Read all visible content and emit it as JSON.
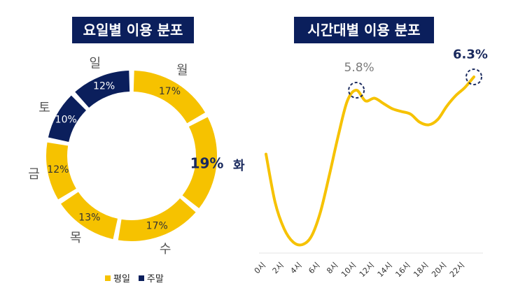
{
  "colors": {
    "weekday": "#f6c200",
    "weekend": "#0b1f5c",
    "highlight_label": "#1a2a5e",
    "peak_label_gray": "#7d7d7d"
  },
  "chart_data": [
    {
      "type": "pie",
      "title": "요일별 이용 분포",
      "slices": [
        {
          "label": "월",
          "value": 17,
          "value_label": "17%",
          "group": "평일"
        },
        {
          "label": "화",
          "value": 19,
          "value_label": "19%",
          "group": "평일"
        },
        {
          "label": "수",
          "value": 17,
          "value_label": "17%",
          "group": "평일"
        },
        {
          "label": "목",
          "value": 13,
          "value_label": "13%",
          "group": "평일"
        },
        {
          "label": "금",
          "value": 12,
          "value_label": "12%",
          "group": "평일"
        },
        {
          "label": "토",
          "value": 10,
          "value_label": "10%",
          "group": "주말"
        },
        {
          "label": "일",
          "value": 12,
          "value_label": "12%",
          "group": "주말"
        }
      ],
      "legend": [
        "평일",
        "주말"
      ]
    },
    {
      "type": "line",
      "title": "시간대별 이용 분포",
      "x_ticks": [
        "0시",
        "2시",
        "4시",
        "6시",
        "8시",
        "10시",
        "12시",
        "14시",
        "16시",
        "18시",
        "20시",
        "22시"
      ],
      "x": [
        0,
        1,
        2,
        3,
        4,
        5,
        6,
        7,
        8,
        9,
        10,
        11,
        12,
        13,
        14,
        15,
        16,
        17,
        18,
        19,
        20,
        21,
        22,
        23
      ],
      "values": [
        3.4,
        1.6,
        0.6,
        0.1,
        0.0,
        0.3,
        1.2,
        2.6,
        4.1,
        5.4,
        5.8,
        5.4,
        5.5,
        5.3,
        5.1,
        5.0,
        4.9,
        4.6,
        4.5,
        4.7,
        5.2,
        5.6,
        5.9,
        6.3
      ],
      "annotations": [
        {
          "x": 10,
          "label": "5.8%"
        },
        {
          "x": 23,
          "label": "6.3%"
        }
      ],
      "y_axis_visible": false
    }
  ]
}
